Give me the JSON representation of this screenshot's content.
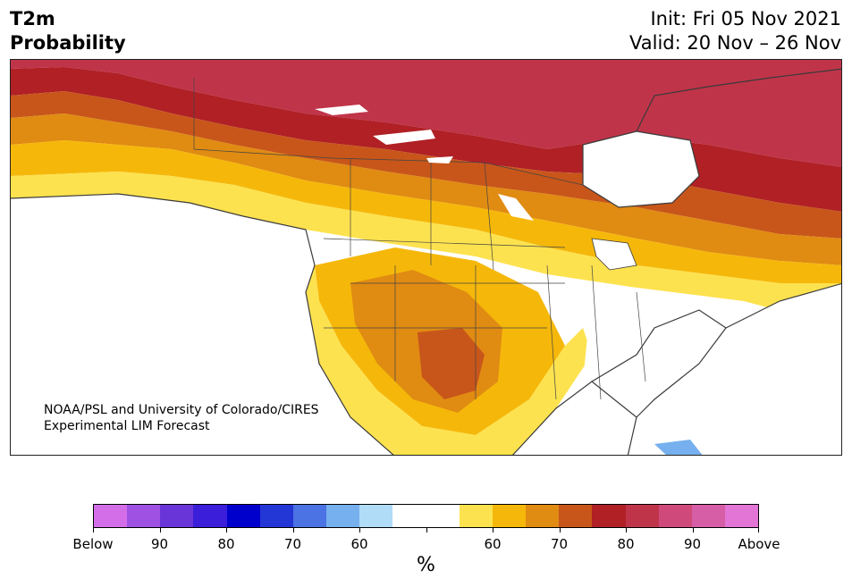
{
  "header": {
    "title_line1": "T2m",
    "title_line2": "Probability",
    "init": "Init: Fri 05 Nov 2021",
    "valid": "Valid: 20 Nov – 26 Nov"
  },
  "credit": {
    "line1": "NOAA/PSL and University of Colorado/CIRES",
    "line2": "Experimental LIM Forecast"
  },
  "colorbar": {
    "colors": [
      "#d46ee8",
      "#9e51e3",
      "#6a35d8",
      "#3a1ed9",
      "#0000cc",
      "#2336d6",
      "#4b73e3",
      "#76b0ee",
      "#b0dcf8",
      "#ffffff",
      "#ffffff",
      "#fde24f",
      "#f5b80a",
      "#e08b12",
      "#c8561a",
      "#b02025",
      "#c0344a",
      "#cf4a7a",
      "#d65ea6",
      "#e375d6"
    ],
    "tick_labels": [
      "Below",
      "90",
      "80",
      "70",
      "60",
      "",
      "60",
      "70",
      "80",
      "90",
      "Above"
    ],
    "unit": "%"
  }
}
